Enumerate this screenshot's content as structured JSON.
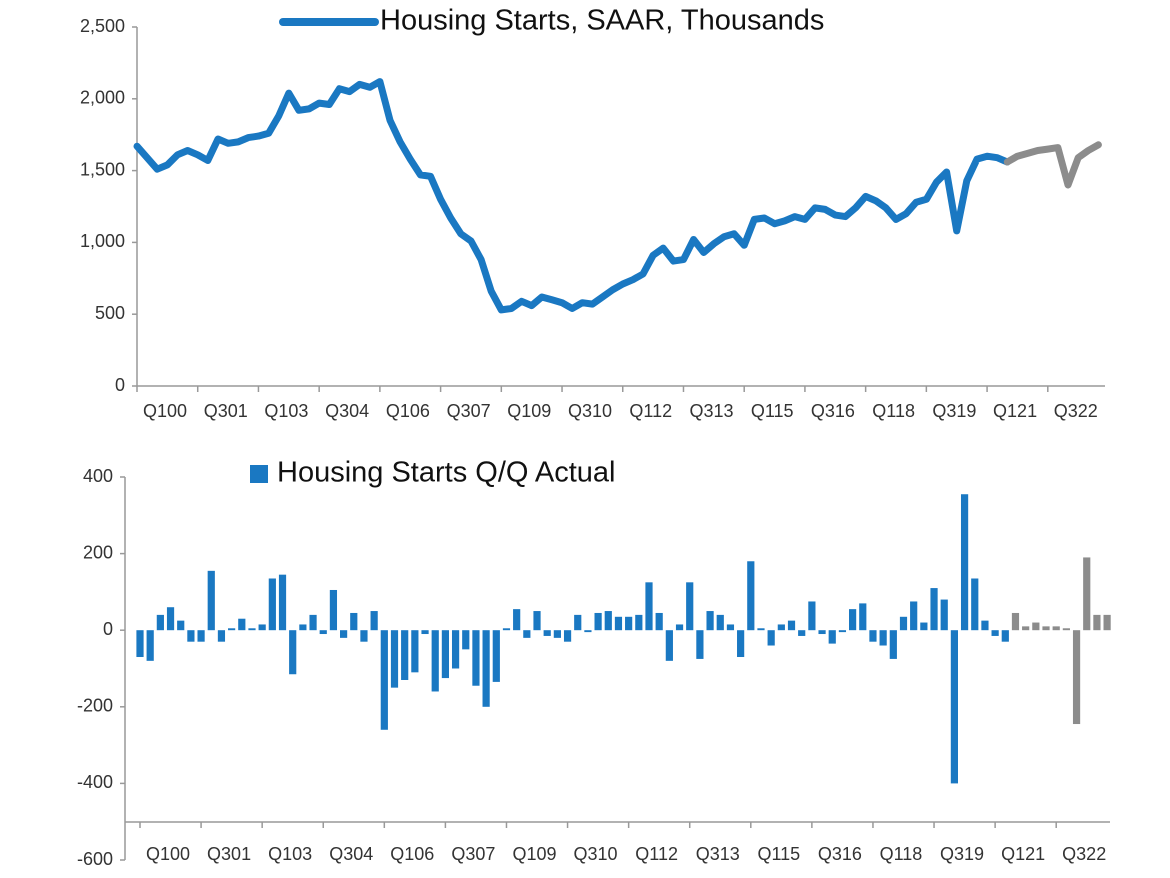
{
  "chart_data": [
    {
      "type": "line",
      "categories": [
        "Q100",
        null,
        null,
        null,
        null,
        null,
        "Q301",
        null,
        null,
        null,
        null,
        null,
        "Q103",
        null,
        null,
        null,
        null,
        null,
        "Q304",
        null,
        null,
        null,
        null,
        null,
        "Q106",
        null,
        null,
        null,
        null,
        null,
        "Q307",
        null,
        null,
        null,
        null,
        null,
        "Q109",
        null,
        null,
        null,
        null,
        null,
        "Q310",
        null,
        null,
        null,
        null,
        null,
        "Q112",
        null,
        null,
        null,
        null,
        null,
        "Q313",
        null,
        null,
        null,
        null,
        null,
        "Q115",
        null,
        null,
        null,
        null,
        null,
        "Q316",
        null,
        null,
        null,
        null,
        null,
        "Q118",
        null,
        null,
        null,
        null,
        null,
        "Q319",
        null,
        null,
        null,
        null,
        null,
        "Q121",
        null,
        null,
        null,
        null,
        null,
        "Q322",
        null,
        null,
        null,
        null,
        null
      ],
      "series": [
        {
          "name": "Housing Starts, SAAR, Thousands",
          "color": "#1a78c2",
          "values": [
            1670,
            1590,
            1510,
            1540,
            1610,
            1640,
            1610,
            1570,
            1720,
            1690,
            1700,
            1730,
            1740,
            1760,
            1880,
            2040,
            1920,
            1930,
            1970,
            1960,
            2070,
            2050,
            2100,
            2080,
            2120,
            1850,
            1700,
            1580,
            1470,
            1460,
            1300,
            1170,
            1060,
            1010,
            880,
            660,
            530,
            540,
            590,
            560,
            620,
            600,
            580,
            540,
            580,
            570,
            620,
            670,
            710,
            740,
            780,
            910,
            960,
            870,
            880,
            1020,
            930,
            990,
            1040,
            1060,
            980,
            1160,
            1170,
            1130,
            1150,
            1180,
            1160,
            1240,
            1230,
            1190,
            1180,
            1240,
            1320,
            1290,
            1240,
            1160,
            1200,
            1280,
            1300,
            1420,
            1490,
            1080,
            1430,
            1580,
            1600,
            1590,
            1560,
            null,
            null,
            null,
            null,
            null,
            null,
            null,
            null,
            null
          ]
        },
        {
          "color": "#8c8c8c",
          "values": [
            null,
            null,
            null,
            null,
            null,
            null,
            null,
            null,
            null,
            null,
            null,
            null,
            null,
            null,
            null,
            null,
            null,
            null,
            null,
            null,
            null,
            null,
            null,
            null,
            null,
            null,
            null,
            null,
            null,
            null,
            null,
            null,
            null,
            null,
            null,
            null,
            null,
            null,
            null,
            null,
            null,
            null,
            null,
            null,
            null,
            null,
            null,
            null,
            null,
            null,
            null,
            null,
            null,
            null,
            null,
            null,
            null,
            null,
            null,
            null,
            null,
            null,
            null,
            null,
            null,
            null,
            null,
            null,
            null,
            null,
            null,
            null,
            null,
            null,
            null,
            null,
            null,
            null,
            null,
            null,
            null,
            null,
            null,
            null,
            null,
            null,
            1560,
            1600,
            1620,
            1640,
            1650,
            1660,
            1400,
            1590,
            1640,
            1680
          ]
        }
      ],
      "ylim": [
        0,
        2500
      ],
      "yticks": [
        0,
        500,
        {
          "value": 1000,
          "label": "1,000"
        },
        {
          "value": 1500,
          "label": "1,500"
        },
        {
          "value": 2000,
          "label": "2,000"
        },
        {
          "value": 2500,
          "label": "2,500"
        }
      ],
      "grid": false
    },
    {
      "type": "bar",
      "categories": [
        "Q100",
        null,
        null,
        null,
        null,
        null,
        "Q301",
        null,
        null,
        null,
        null,
        null,
        "Q103",
        null,
        null,
        null,
        null,
        null,
        "Q304",
        null,
        null,
        null,
        null,
        null,
        "Q106",
        null,
        null,
        null,
        null,
        null,
        "Q307",
        null,
        null,
        null,
        null,
        null,
        "Q109",
        null,
        null,
        null,
        null,
        null,
        "Q310",
        null,
        null,
        null,
        null,
        null,
        "Q112",
        null,
        null,
        null,
        null,
        null,
        "Q313",
        null,
        null,
        null,
        null,
        null,
        "Q115",
        null,
        null,
        null,
        null,
        null,
        "Q316",
        null,
        null,
        null,
        null,
        null,
        "Q118",
        null,
        null,
        null,
        null,
        null,
        "Q319",
        null,
        null,
        null,
        null,
        null,
        "Q121",
        null,
        null,
        null,
        null,
        null,
        "Q322",
        null,
        null,
        null,
        null,
        null
      ],
      "series": [
        {
          "name": "Housing Starts Q/Q Actual",
          "color": "#1a78c2",
          "values": [
            -70,
            -80,
            40,
            60,
            25,
            -30,
            -30,
            155,
            -30,
            5,
            30,
            5,
            15,
            135,
            145,
            -115,
            15,
            40,
            -10,
            105,
            -20,
            45,
            -30,
            50,
            -260,
            -150,
            -130,
            -110,
            -10,
            -160,
            -125,
            -100,
            -50,
            -145,
            -200,
            -135,
            5,
            55,
            -20,
            50,
            -15,
            -20,
            -30,
            40,
            -5,
            45,
            50,
            35,
            35,
            40,
            125,
            45,
            -80,
            15,
            125,
            -75,
            50,
            40,
            15,
            -70,
            180,
            5,
            -40,
            15,
            25,
            -15,
            75,
            -10,
            -35,
            -5,
            55,
            70,
            -30,
            -40,
            -75,
            35,
            75,
            20,
            110,
            80,
            -400,
            355,
            135,
            25,
            -15,
            -30,
            null,
            null,
            null,
            null,
            null,
            null,
            null,
            null,
            null,
            null
          ]
        },
        {
          "color": "#8c8c8c",
          "values": [
            null,
            null,
            null,
            null,
            null,
            null,
            null,
            null,
            null,
            null,
            null,
            null,
            null,
            null,
            null,
            null,
            null,
            null,
            null,
            null,
            null,
            null,
            null,
            null,
            null,
            null,
            null,
            null,
            null,
            null,
            null,
            null,
            null,
            null,
            null,
            null,
            null,
            null,
            null,
            null,
            null,
            null,
            null,
            null,
            null,
            null,
            null,
            null,
            null,
            null,
            null,
            null,
            null,
            null,
            null,
            null,
            null,
            null,
            null,
            null,
            null,
            null,
            null,
            null,
            null,
            null,
            null,
            null,
            null,
            null,
            null,
            null,
            null,
            null,
            null,
            null,
            null,
            null,
            null,
            null,
            null,
            null,
            null,
            null,
            null,
            null,
            45,
            10,
            20,
            10,
            10,
            5,
            -245,
            190,
            40,
            40
          ]
        }
      ],
      "ylim": [
        -600,
        400
      ],
      "yticks": [
        -600,
        -400,
        -200,
        0,
        200,
        400
      ],
      "grid": false
    }
  ]
}
